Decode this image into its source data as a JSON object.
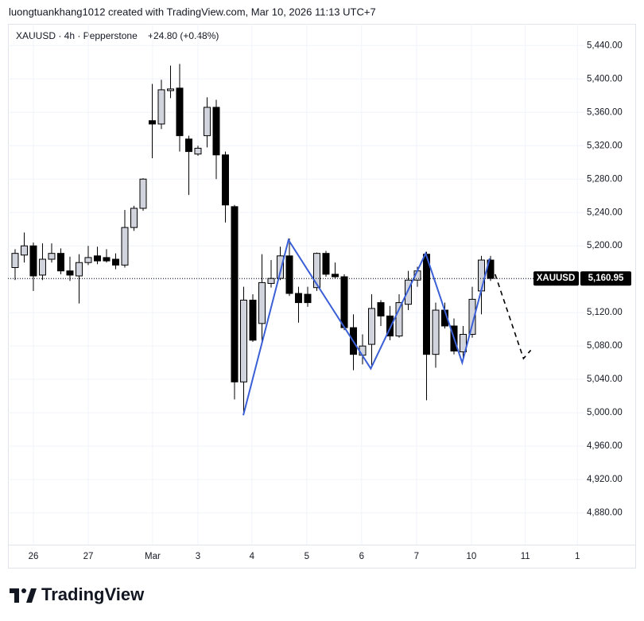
{
  "chart_data": {
    "type": "candlestick",
    "header": "luongtuankhang1012 created with TradingView.com, Mar 10, 2026 11:13 UTC+7",
    "legend": "XAUUSD · 4h · Pepperstone",
    "change": "+24.80 (+0.48%)",
    "symbol": "XAUUSD",
    "last_price": {
      "value": 5160.95,
      "label": "5,160.95"
    },
    "up_color": "#d1d4dc",
    "down_color": "#000000",
    "candles": [
      {
        "open": 5174,
        "high": 5196,
        "low": 5159,
        "close": 5191
      },
      {
        "open": 5189,
        "high": 5216,
        "low": 5180,
        "close": 5200
      },
      {
        "open": 5200,
        "high": 5204,
        "low": 5146,
        "close": 5164
      },
      {
        "open": 5165,
        "high": 5203,
        "low": 5159,
        "close": 5184
      },
      {
        "open": 5184,
        "high": 5203,
        "low": 5180,
        "close": 5191
      },
      {
        "open": 5191,
        "high": 5197,
        "low": 5166,
        "close": 5170
      },
      {
        "open": 5170,
        "high": 5187,
        "low": 5158,
        "close": 5165
      },
      {
        "open": 5164,
        "high": 5190,
        "low": 5131,
        "close": 5180
      },
      {
        "open": 5180,
        "high": 5200,
        "low": 5177,
        "close": 5186
      },
      {
        "open": 5188,
        "high": 5199,
        "low": 5178,
        "close": 5182
      },
      {
        "open": 5186,
        "high": 5196,
        "low": 5180,
        "close": 5182
      },
      {
        "open": 5184,
        "high": 5191,
        "low": 5172,
        "close": 5177
      },
      {
        "open": 5177,
        "high": 5243,
        "low": 5174,
        "close": 5222
      },
      {
        "open": 5222,
        "high": 5248,
        "low": 5218,
        "close": 5245
      },
      {
        "open": 5245,
        "high": 5281,
        "low": 5242,
        "close": 5280
      },
      {
        "open": 5350,
        "high": 5394,
        "low": 5305,
        "close": 5346
      },
      {
        "open": 5346,
        "high": 5399,
        "low": 5340,
        "close": 5387
      },
      {
        "open": 5386,
        "high": 5416,
        "low": 5377,
        "close": 5388
      },
      {
        "open": 5389,
        "high": 5418,
        "low": 5313,
        "close": 5332
      },
      {
        "open": 5328,
        "high": 5332,
        "low": 5261,
        "close": 5313
      },
      {
        "open": 5310,
        "high": 5320,
        "low": 5308,
        "close": 5317
      },
      {
        "open": 5332,
        "high": 5378,
        "low": 5318,
        "close": 5366
      },
      {
        "open": 5366,
        "high": 5375,
        "low": 5280,
        "close": 5309
      },
      {
        "open": 5309,
        "high": 5313,
        "low": 5228,
        "close": 5249
      },
      {
        "open": 5247,
        "high": 5249,
        "low": 5016,
        "close": 5037
      },
      {
        "open": 5037,
        "high": 5151,
        "low": 4999,
        "close": 5135
      },
      {
        "open": 5135,
        "high": 5142,
        "low": 5085,
        "close": 5087
      },
      {
        "open": 5107,
        "high": 5190,
        "low": 5085,
        "close": 5156
      },
      {
        "open": 5155,
        "high": 5183,
        "low": 5150,
        "close": 5161
      },
      {
        "open": 5161,
        "high": 5199,
        "low": 5159,
        "close": 5188
      },
      {
        "open": 5188,
        "high": 5209,
        "low": 5140,
        "close": 5143
      },
      {
        "open": 5143,
        "high": 5151,
        "low": 5108,
        "close": 5132
      },
      {
        "open": 5142,
        "high": 5151,
        "low": 5127,
        "close": 5132
      },
      {
        "open": 5150,
        "high": 5192,
        "low": 5146,
        "close": 5191
      },
      {
        "open": 5191,
        "high": 5194,
        "low": 5163,
        "close": 5166
      },
      {
        "open": 5166,
        "high": 5180,
        "low": 5161,
        "close": 5163
      },
      {
        "open": 5163,
        "high": 5166,
        "low": 5099,
        "close": 5102
      },
      {
        "open": 5102,
        "high": 5118,
        "low": 5051,
        "close": 5070
      },
      {
        "open": 5069,
        "high": 5094,
        "low": 5058,
        "close": 5080
      },
      {
        "open": 5082,
        "high": 5142,
        "low": 5054,
        "close": 5125
      },
      {
        "open": 5132,
        "high": 5135,
        "low": 5104,
        "close": 5116
      },
      {
        "open": 5116,
        "high": 5128,
        "low": 5087,
        "close": 5092
      },
      {
        "open": 5092,
        "high": 5142,
        "low": 5090,
        "close": 5132
      },
      {
        "open": 5130,
        "high": 5170,
        "low": 5123,
        "close": 5159
      },
      {
        "open": 5159,
        "high": 5175,
        "low": 5151,
        "close": 5170
      },
      {
        "open": 5190,
        "high": 5193,
        "low": 5015,
        "close": 5070
      },
      {
        "open": 5070,
        "high": 5132,
        "low": 5054,
        "close": 5123
      },
      {
        "open": 5123,
        "high": 5132,
        "low": 5101,
        "close": 5104
      },
      {
        "open": 5104,
        "high": 5113,
        "low": 5070,
        "close": 5074
      },
      {
        "open": 5073,
        "high": 5104,
        "low": 5064,
        "close": 5094
      },
      {
        "open": 5094,
        "high": 5151,
        "low": 5090,
        "close": 5136
      },
      {
        "open": 5146,
        "high": 5188,
        "low": 5118,
        "close": 5183
      },
      {
        "open": 5183,
        "high": 5188,
        "low": 5158,
        "close": 5161
      }
    ],
    "zigzag": {
      "color": "#3b5fd6",
      "points": [
        [
          24.96,
          4997
        ],
        [
          29.9,
          5207
        ],
        [
          38.9,
          5053
        ],
        [
          44.9,
          5191
        ],
        [
          48.9,
          5060
        ],
        [
          51.9,
          5185
        ]
      ]
    },
    "projection": {
      "color": "#000000",
      "points": [
        [
          52.5,
          5166
        ],
        [
          55.6,
          5065
        ],
        [
          56.4,
          5075
        ]
      ]
    },
    "xlim": [
      -0.78,
      62.26
    ],
    "ylim": [
      4842,
      5466
    ],
    "xticks": [
      {
        "value": 2,
        "label": "26"
      },
      {
        "value": 8,
        "label": "27"
      },
      {
        "value": 15.04,
        "label": "Mar"
      },
      {
        "value": 20,
        "label": "3"
      },
      {
        "value": 25.9,
        "label": "4"
      },
      {
        "value": 31.9,
        "label": "5"
      },
      {
        "value": 37.9,
        "label": "6"
      },
      {
        "value": 43.9,
        "label": "7"
      },
      {
        "value": 49.9,
        "label": "10"
      },
      {
        "value": 55.8,
        "label": "11"
      },
      {
        "value": 61.5,
        "label": "1"
      }
    ],
    "yticks": [
      {
        "value": 4880,
        "label": "4,880.00"
      },
      {
        "value": 4920,
        "label": "4,920.00"
      },
      {
        "value": 4960,
        "label": "4,960.00"
      },
      {
        "value": 5000,
        "label": "5,000.00"
      },
      {
        "value": 5040,
        "label": "5,040.00"
      },
      {
        "value": 5080,
        "label": "5,080.00"
      },
      {
        "value": 5120,
        "label": "5,120.00"
      },
      {
        "value": 5160,
        "label": "5,160.00"
      },
      {
        "value": 5200,
        "label": "5,200.00"
      },
      {
        "value": 5240,
        "label": "5,240.00"
      },
      {
        "value": 5280,
        "label": "5,280.00"
      },
      {
        "value": 5320,
        "label": "5,320.00"
      },
      {
        "value": 5360,
        "label": "5,360.00"
      },
      {
        "value": 5400,
        "label": "5,400.00"
      },
      {
        "value": 5440,
        "label": "5,440.00"
      }
    ],
    "grid": true,
    "footer": "TradingView"
  }
}
